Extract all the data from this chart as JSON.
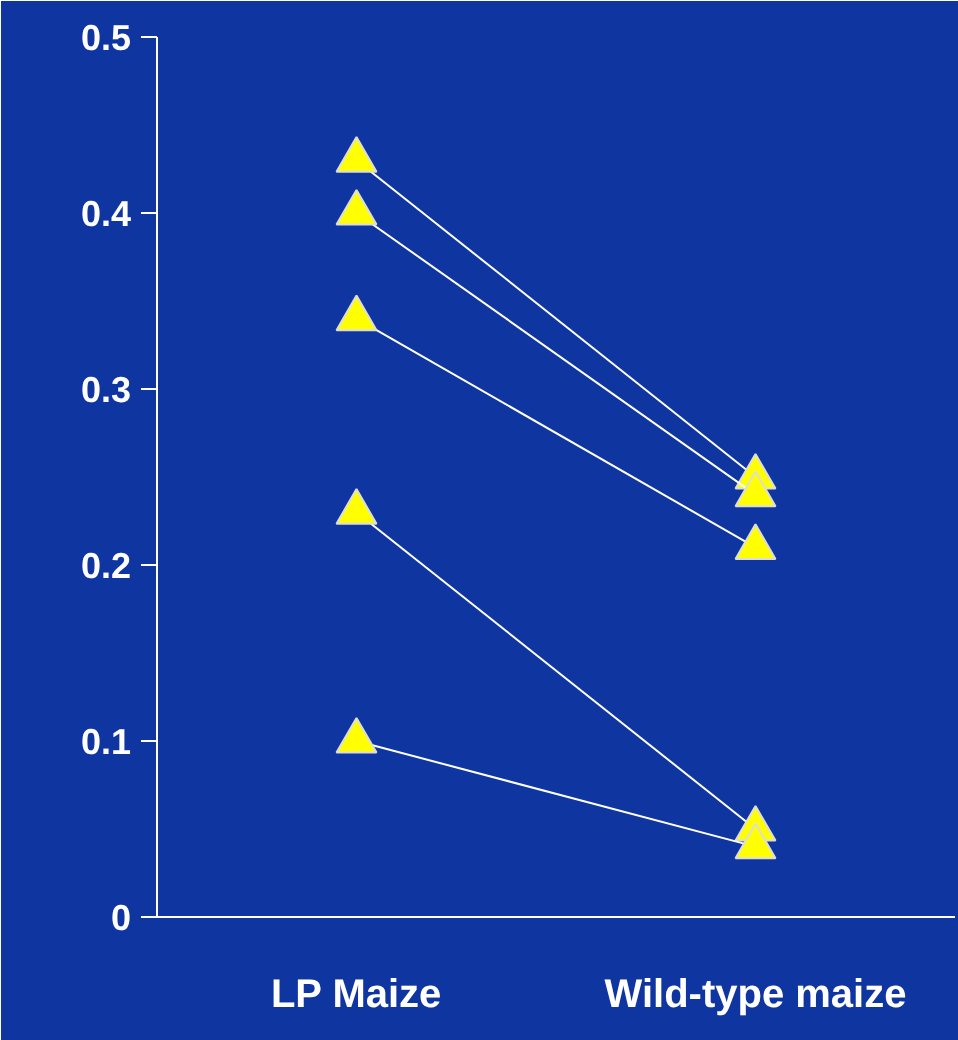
{
  "chart_data": {
    "type": "line",
    "categories": [
      "LP Maize",
      "Wild-type maize"
    ],
    "series": [
      {
        "color": "#ffff00",
        "values": [
          0.43,
          0.25
        ]
      },
      {
        "color": "#ffff00",
        "values": [
          0.4,
          0.24
        ]
      },
      {
        "color": "#ffff00",
        "values": [
          0.34,
          0.21
        ]
      },
      {
        "color": "#ffff00",
        "values": [
          0.23,
          0.05
        ]
      },
      {
        "color": "#ffff00",
        "values": [
          0.1,
          0.04
        ]
      }
    ],
    "ylim": [
      0,
      0.5
    ],
    "yticks": [
      0,
      0.1,
      0.2,
      0.3,
      0.4,
      0.5
    ],
    "marker": "triangle",
    "line_style": "solid",
    "grid": false
  }
}
